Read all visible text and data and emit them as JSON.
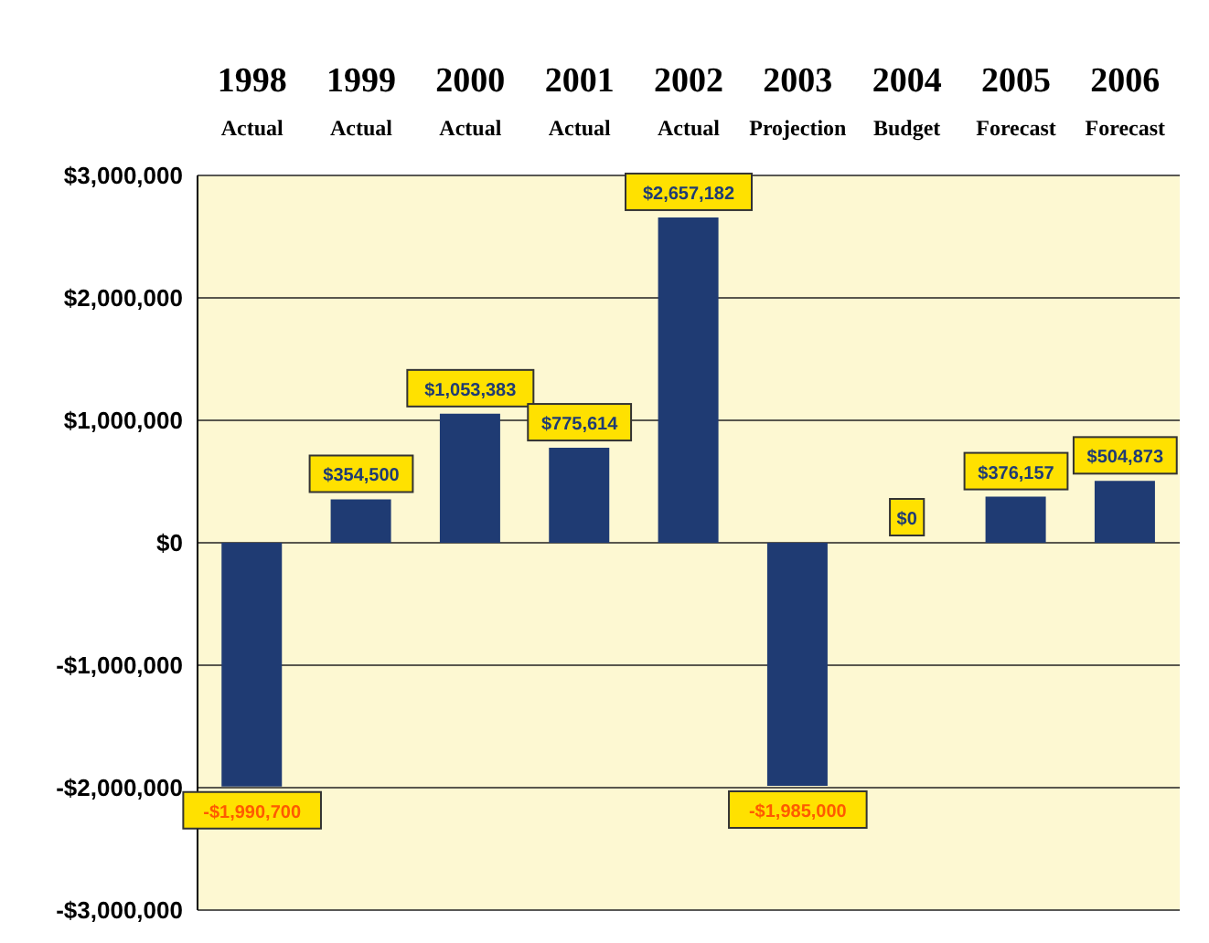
{
  "chart_data": {
    "type": "bar",
    "categories": [
      "1998\nActual",
      "1999\nActual",
      "2000\nActual",
      "2001\nActual",
      "2002\nActual",
      "2003\nProjection",
      "2004\nBudget",
      "2005\nForecast",
      "2006\nForecast"
    ],
    "values": [
      -1990700,
      354500,
      1053383,
      775614,
      2657182,
      -1985000,
      0,
      376157,
      504873
    ],
    "value_labels": [
      "-$1,990,700",
      "$354,500",
      "$1,053,383",
      "$775,614",
      "$2,657,182",
      "-$1,985,000",
      "$0",
      "$376,157",
      "$504,873"
    ],
    "color": "#1f3b73",
    "ylim": [
      -3000000,
      3000000
    ],
    "yticks": [
      {
        "value": -3000000,
        "label": "-$3,000,000"
      },
      {
        "value": -2000000,
        "label": "-$2,000,000"
      },
      {
        "value": -1000000,
        "label": "-$1,000,000"
      },
      {
        "value": 0,
        "label": "$0"
      },
      {
        "value": 1000000,
        "label": "$1,000,000"
      },
      {
        "value": 2000000,
        "label": "$2,000,000"
      },
      {
        "value": 3000000,
        "label": "$3,000,000"
      }
    ],
    "grid": "y",
    "legend": false
  }
}
